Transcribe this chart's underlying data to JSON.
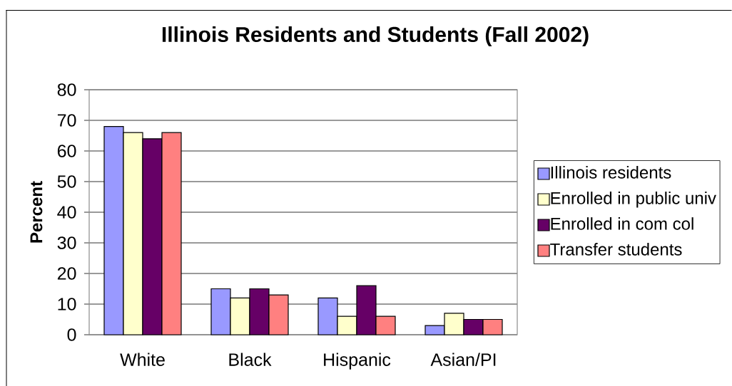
{
  "chart_data": {
    "type": "bar",
    "title": "Illinois Residents and Students (Fall 2002)",
    "ylabel": "Percent",
    "categories": [
      "White",
      "Black",
      "Hispanic",
      "Asian/PI"
    ],
    "series": [
      {
        "name": "Illinois residents",
        "color": "#9999ff",
        "values": [
          68,
          15,
          12,
          3
        ]
      },
      {
        "name": "Enrolled in public univ",
        "color": "#ffffcc",
        "values": [
          66,
          12,
          6,
          7
        ]
      },
      {
        "name": "Enrolled in com col",
        "color": "#660066",
        "values": [
          64,
          15,
          16,
          5
        ]
      },
      {
        "name": "Transfer students",
        "color": "#ff8080",
        "values": [
          66,
          13,
          6,
          5
        ]
      }
    ],
    "ylim": [
      0,
      80
    ],
    "yticks": [
      0,
      10,
      20,
      30,
      40,
      50,
      60,
      70,
      80
    ],
    "grid": "y",
    "legend": "right"
  }
}
